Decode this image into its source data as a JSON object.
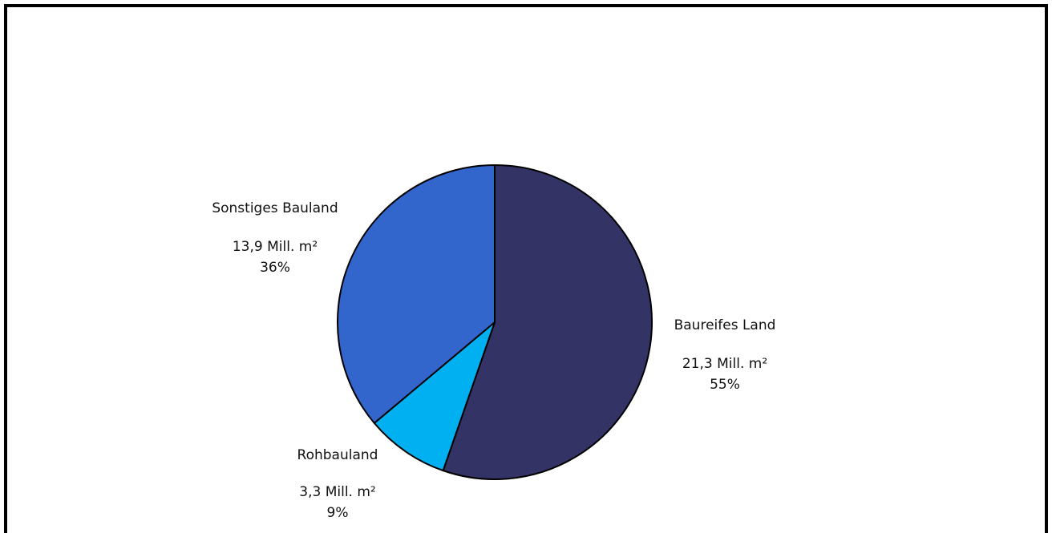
{
  "chart_data": {
    "type": "pie",
    "title": "",
    "slices": [
      {
        "label": "Baureifes Land",
        "value_text": "21,3 Mill. m²",
        "percent_text": "55%",
        "value": 21.3,
        "percent": 55,
        "color": "#333366"
      },
      {
        "label": "Rohbauland",
        "value_text": "3,3 Mill. m²",
        "percent_text": "9%",
        "value": 3.3,
        "percent": 9,
        "color": "#00b0f0"
      },
      {
        "label": "Sonstiges Bauland",
        "value_text": "13,9 Mill. m²",
        "percent_text": "36%",
        "value": 13.9,
        "percent": 36,
        "color": "#3366cc"
      }
    ],
    "start_angle": "12 o'clock",
    "direction": "clockwise",
    "legend": "none",
    "data_labels": "outside"
  }
}
